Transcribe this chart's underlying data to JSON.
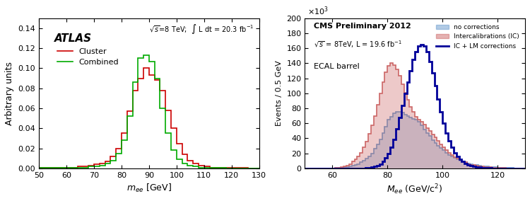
{
  "left": {
    "ylabel": "Arbitrary units",
    "xlim": [
      50,
      130
    ],
    "ylim": [
      0,
      0.15
    ],
    "yticks": [
      0,
      0.02,
      0.04,
      0.06,
      0.08,
      0.1,
      0.12,
      0.14
    ],
    "xticks": [
      50,
      60,
      70,
      80,
      90,
      100,
      110,
      120,
      130
    ],
    "cluster_color": "#cc0000",
    "combined_color": "#00aa00",
    "cluster_label": "Cluster",
    "combined_label": "Combined",
    "cluster_edges": [
      50,
      52,
      54,
      56,
      58,
      60,
      62,
      64,
      66,
      68,
      70,
      72,
      74,
      76,
      78,
      80,
      82,
      84,
      86,
      88,
      90,
      92,
      94,
      96,
      98,
      100,
      102,
      104,
      106,
      108,
      110,
      112,
      114,
      116,
      118,
      120,
      122,
      124,
      126,
      128,
      130
    ],
    "cluster_vals": [
      0.001,
      0.001,
      0.001,
      0.001,
      0.001,
      0.001,
      0.001,
      0.002,
      0.002,
      0.003,
      0.004,
      0.005,
      0.007,
      0.012,
      0.02,
      0.035,
      0.057,
      0.078,
      0.09,
      0.1,
      0.093,
      0.088,
      0.078,
      0.058,
      0.04,
      0.025,
      0.014,
      0.008,
      0.005,
      0.003,
      0.002,
      0.001,
      0.001,
      0.001,
      0.001,
      0.001,
      0.001,
      0.001,
      0.0,
      0.0
    ],
    "combined_edges": [
      50,
      52,
      54,
      56,
      58,
      60,
      62,
      64,
      66,
      68,
      70,
      72,
      74,
      76,
      78,
      80,
      82,
      84,
      86,
      88,
      90,
      92,
      94,
      96,
      98,
      100,
      102,
      104,
      106,
      108,
      110,
      112,
      114,
      116,
      118,
      120,
      122,
      124,
      126,
      128,
      130
    ],
    "combined_vals": [
      0.001,
      0.001,
      0.001,
      0.001,
      0.001,
      0.001,
      0.001,
      0.001,
      0.001,
      0.002,
      0.002,
      0.003,
      0.005,
      0.008,
      0.015,
      0.028,
      0.052,
      0.086,
      0.11,
      0.113,
      0.107,
      0.09,
      0.06,
      0.035,
      0.018,
      0.009,
      0.005,
      0.003,
      0.002,
      0.001,
      0.001,
      0.001,
      0.001,
      0.001,
      0.0,
      0.0,
      0.0,
      0.0,
      0.0,
      0.0
    ]
  },
  "right": {
    "title1": "CMS Preliminary 2012",
    "title2": "\\sqrt{s} = 8TeV, L = 19.6 fb^{-1}",
    "label3": "ECAL barrel",
    "ylabel": "Events / 0.5 GeV",
    "xlim": [
      50,
      130
    ],
    "ylim": [
      0,
      200
    ],
    "yticks": [
      0,
      20,
      40,
      60,
      80,
      100,
      120,
      140,
      160,
      180,
      200
    ],
    "xticks": [
      60,
      80,
      100,
      120
    ],
    "ylabel_scale": 1000,
    "no_corr_color": "#6699cc",
    "ic_color": "#cc6666",
    "lm_color": "#000099",
    "no_corr_label": "no corrections",
    "ic_label": "Intercalibrations (IC)",
    "lm_label": "IC + LM corrections",
    "edges": [
      50,
      51,
      52,
      53,
      54,
      55,
      56,
      57,
      58,
      59,
      60,
      61,
      62,
      63,
      64,
      65,
      66,
      67,
      68,
      69,
      70,
      71,
      72,
      73,
      74,
      75,
      76,
      77,
      78,
      79,
      80,
      81,
      82,
      83,
      84,
      85,
      86,
      87,
      88,
      89,
      90,
      91,
      92,
      93,
      94,
      95,
      96,
      97,
      98,
      99,
      100,
      101,
      102,
      103,
      104,
      105,
      106,
      107,
      108,
      109,
      110,
      111,
      112,
      113,
      114,
      115,
      116,
      117,
      118,
      119,
      120,
      121,
      122,
      123,
      124,
      125,
      126,
      127,
      128,
      129,
      130
    ],
    "no_corr_vals": [
      0,
      0,
      0,
      0,
      0,
      0,
      0,
      0,
      0,
      0,
      0,
      1,
      1,
      1,
      2,
      2,
      3,
      4,
      5,
      6,
      8,
      10,
      13,
      16,
      20,
      26,
      32,
      39,
      47,
      56,
      65,
      69,
      73,
      75,
      75,
      74,
      72,
      70,
      68,
      66,
      65,
      62,
      57,
      52,
      47,
      43,
      38,
      34,
      30,
      27,
      24,
      21,
      18,
      16,
      14,
      12,
      10,
      9,
      8,
      7,
      6,
      5,
      5,
      4,
      3,
      3,
      3,
      2,
      2,
      2,
      1,
      1,
      1,
      1,
      1,
      1,
      0,
      0,
      0,
      0
    ],
    "ic_vals": [
      0,
      0,
      0,
      0,
      0,
      0,
      0,
      0,
      0,
      0,
      0,
      1,
      1,
      2,
      3,
      4,
      6,
      9,
      12,
      16,
      21,
      28,
      36,
      46,
      57,
      70,
      85,
      100,
      115,
      128,
      137,
      140,
      138,
      132,
      123,
      112,
      101,
      91,
      82,
      75,
      69,
      65,
      62,
      58,
      54,
      50,
      45,
      41,
      37,
      32,
      28,
      24,
      21,
      18,
      15,
      13,
      11,
      9,
      8,
      6,
      5,
      5,
      4,
      3,
      3,
      2,
      2,
      2,
      1,
      1,
      1,
      1,
      1,
      0,
      0,
      0,
      0,
      0,
      0,
      0
    ],
    "lm_vals": [
      0,
      0,
      0,
      0,
      0,
      0,
      0,
      0,
      0,
      0,
      0,
      0,
      0,
      0,
      0,
      0,
      0,
      0,
      0,
      0,
      0,
      0,
      1,
      1,
      2,
      3,
      4,
      6,
      9,
      14,
      20,
      28,
      39,
      53,
      68,
      84,
      100,
      115,
      130,
      145,
      155,
      163,
      165,
      163,
      155,
      142,
      127,
      110,
      92,
      75,
      60,
      47,
      37,
      28,
      21,
      16,
      12,
      9,
      7,
      5,
      4,
      3,
      2,
      2,
      1,
      1,
      1,
      1,
      0,
      0,
      0,
      0,
      0,
      0,
      0,
      0,
      0,
      0,
      0,
      0
    ]
  }
}
